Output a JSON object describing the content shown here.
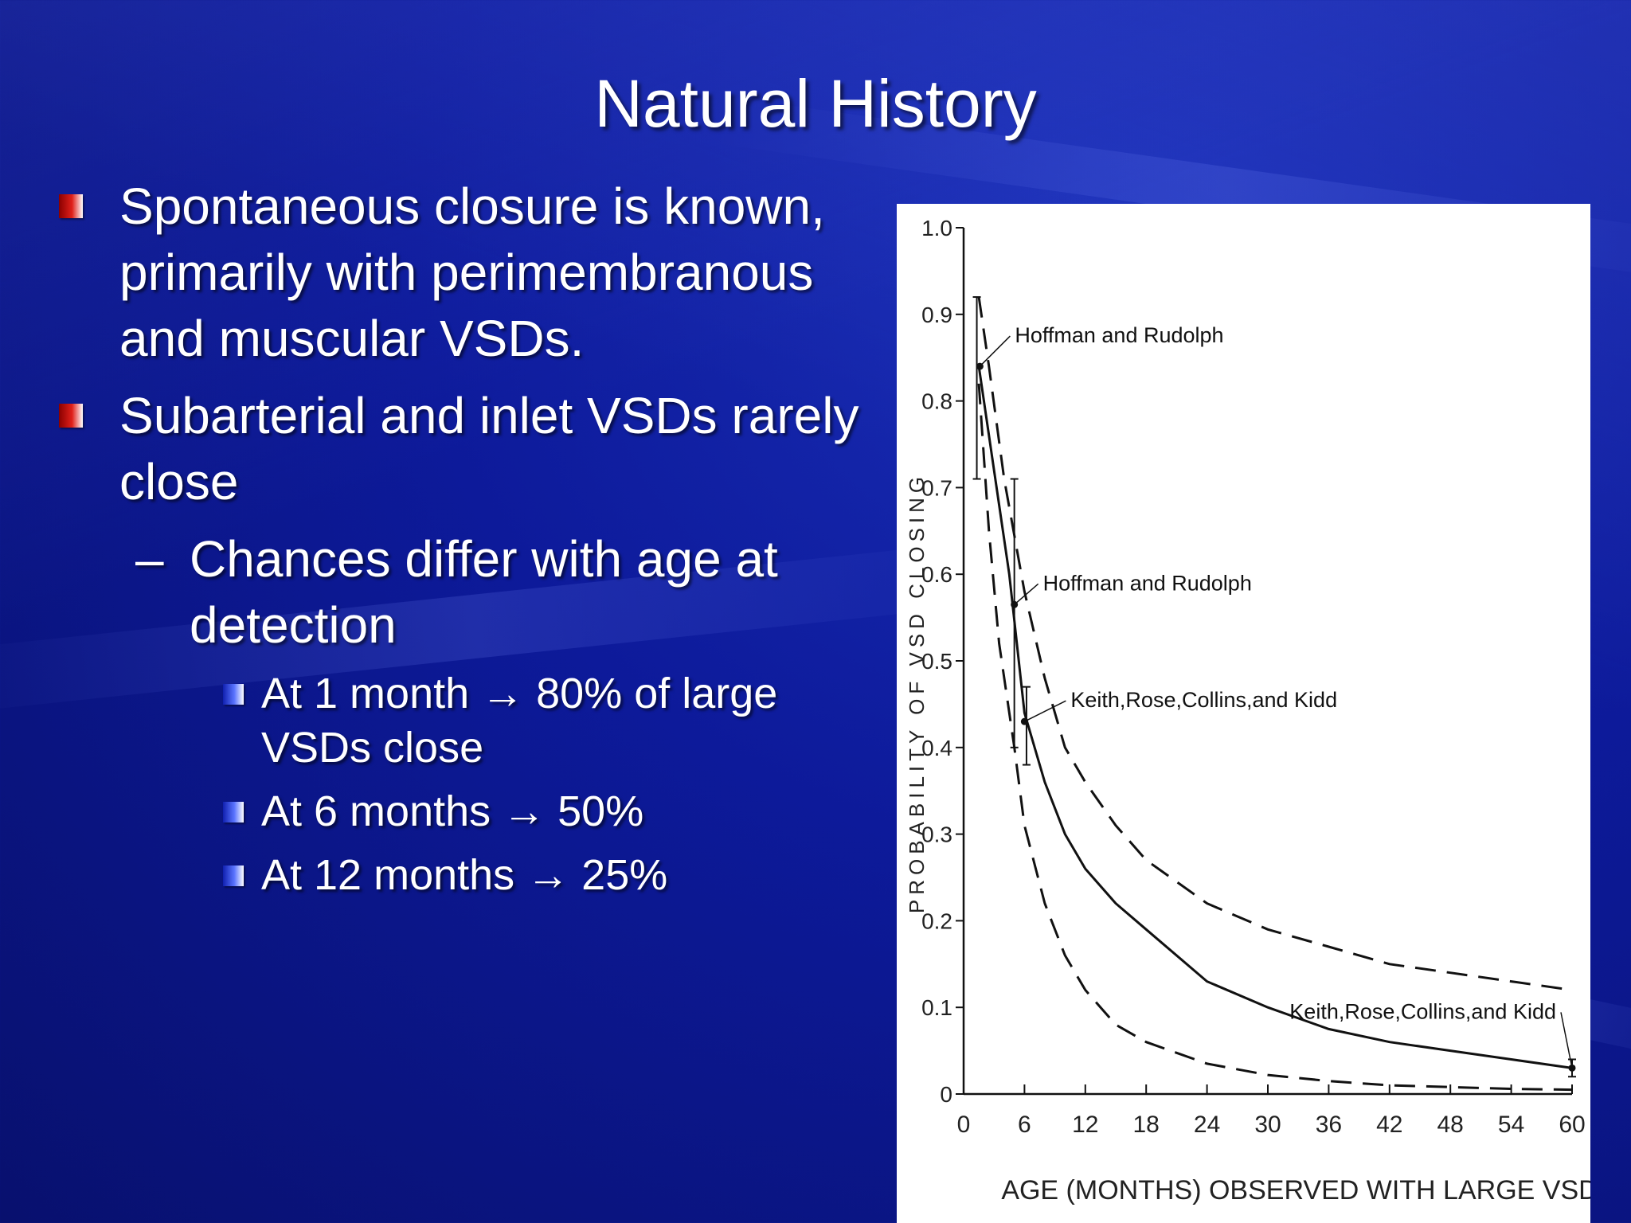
{
  "slide": {
    "title": "Natural History",
    "bullets": [
      {
        "text": "Spontaneous closure is known, primarily with perimembranous and muscular VSDs."
      },
      {
        "text": "Subarterial and inlet VSDs rarely close"
      }
    ],
    "sub_bullet": {
      "text": "Chances differ with age at detection"
    },
    "sub_sub_bullets": [
      {
        "text": "At 1 month → 80% of large VSDs close"
      },
      {
        "text": "At 6 months → 50%"
      },
      {
        "text": "At 12 months → 25%"
      }
    ],
    "dash": "–"
  },
  "colors": {
    "accent_red": "#e0201a",
    "background": "#0d1a9a"
  },
  "chart_data": {
    "type": "line",
    "xlabel": "AGE (MONTHS) OBSERVED WITH LARGE VSD",
    "ylabel": "PROBABILITY OF VSD CLOSING",
    "xlim": [
      0,
      60
    ],
    "ylim": [
      0,
      1.0
    ],
    "x_ticks": [
      "0",
      "6",
      "12",
      "18",
      "24",
      "30",
      "36",
      "42",
      "48",
      "54",
      "60"
    ],
    "y_ticks": [
      "0",
      "0.1",
      "0.2",
      "0.3",
      "0.4",
      "0.5",
      "0.6",
      "0.7",
      "0.8",
      "0.9",
      "1.0"
    ],
    "series": [
      {
        "style": "solid",
        "x": [
          1.5,
          3,
          4.5,
          6,
          8,
          10,
          12,
          15,
          18,
          24,
          30,
          36,
          42,
          48,
          54,
          60
        ],
        "y": [
          0.84,
          0.72,
          0.6,
          0.44,
          0.36,
          0.3,
          0.26,
          0.22,
          0.19,
          0.13,
          0.1,
          0.075,
          0.06,
          0.05,
          0.04,
          0.03
        ]
      },
      {
        "style": "dashed",
        "x": [
          1.5,
          2.5,
          4,
          6,
          8,
          10,
          12,
          15,
          18,
          24,
          30,
          36,
          42,
          48,
          54,
          60
        ],
        "y": [
          0.92,
          0.84,
          0.71,
          0.58,
          0.48,
          0.4,
          0.36,
          0.31,
          0.27,
          0.22,
          0.19,
          0.17,
          0.15,
          0.14,
          0.13,
          0.12
        ]
      },
      {
        "style": "dashed",
        "x": [
          1.5,
          2.5,
          3.5,
          5,
          6,
          8,
          10,
          12,
          15,
          18,
          24,
          30,
          36,
          42,
          48,
          54,
          60
        ],
        "y": [
          0.82,
          0.65,
          0.52,
          0.4,
          0.31,
          0.22,
          0.16,
          0.12,
          0.08,
          0.06,
          0.035,
          0.022,
          0.015,
          0.01,
          0.008,
          0.006,
          0.005
        ]
      }
    ],
    "error_bars": [
      {
        "x": 1.3,
        "low": 0.71,
        "high": 0.92
      },
      {
        "x": 5.0,
        "low": 0.4,
        "high": 0.71
      },
      {
        "x": 6.2,
        "low": 0.38,
        "high": 0.47
      },
      {
        "x": 60,
        "low": 0.02,
        "high": 0.04
      }
    ],
    "annotations": [
      {
        "text": "Hoffman and Rudolph",
        "x": 1.6,
        "y": 0.84
      },
      {
        "text": "Hoffman and Rudolph",
        "x": 5.0,
        "y": 0.565
      },
      {
        "text": "Keith,Rose,Collins,and Kidd",
        "x": 6.0,
        "y": 0.43
      },
      {
        "text": "Keith,Rose,Collins,and Kidd",
        "x": 60,
        "y": 0.03
      }
    ]
  }
}
